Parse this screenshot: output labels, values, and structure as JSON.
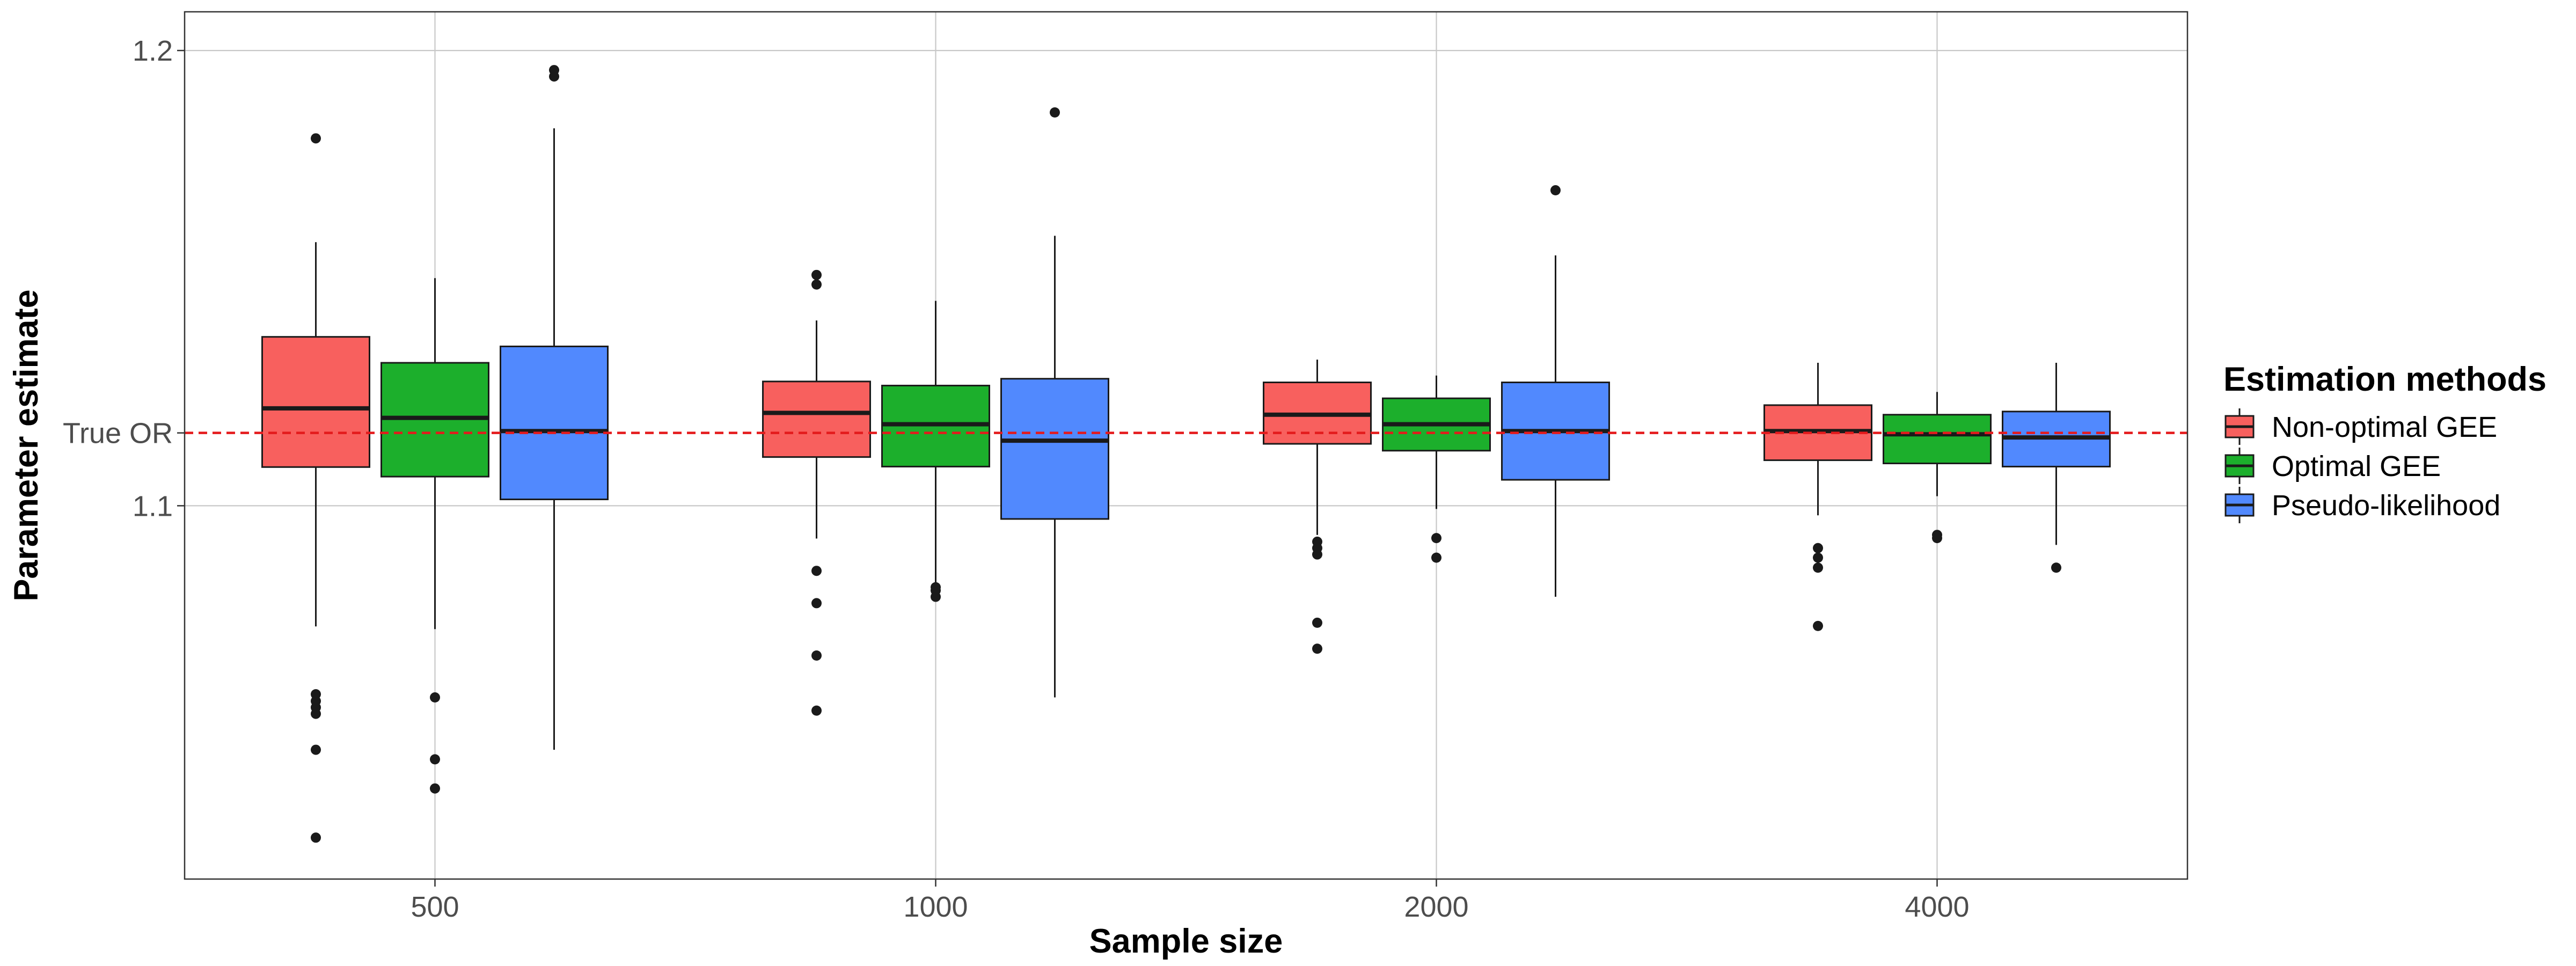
{
  "chart_data": {
    "type": "box",
    "xlabel": "Sample size",
    "ylabel": "Parameter estimate",
    "categories": [
      "500",
      "1000",
      "2000",
      "4000"
    ],
    "y_ticks": [
      1.1,
      1.2
    ],
    "y_tick_labels": [
      "1.1",
      "1.2"
    ],
    "ylim": [
      1.018,
      1.2085
    ],
    "reference_line": {
      "value": 1.116,
      "label": "True OR",
      "color": "#e41a1c",
      "style": "dashed"
    },
    "grid": true,
    "legend": {
      "title": "Estimation methods",
      "position": "right"
    },
    "series": [
      {
        "name": "Non-optimal GEE",
        "color": "#f8605e",
        "boxes": [
          {
            "category": "500",
            "whisker_low": 1.0735,
            "q1": 1.1085,
            "median": 1.1214,
            "q3": 1.1371,
            "whisker_high": 1.1579,
            "outliers": [
              1.1807,
              1.0586,
              1.0571,
              1.0557,
              1.0543,
              1.0464,
              1.0271
            ]
          },
          {
            "category": "1000",
            "whisker_low": 1.0928,
            "q1": 1.1107,
            "median": 1.1204,
            "q3": 1.1273,
            "whisker_high": 1.1407,
            "outliers": [
              1.1507,
              1.1486,
              1.0857,
              1.0786,
              1.0671,
              1.055
            ]
          },
          {
            "category": "2000",
            "whisker_low": 1.0936,
            "q1": 1.1136,
            "median": 1.12,
            "q3": 1.1271,
            "whisker_high": 1.1321,
            "outliers": [
              1.0921,
              1.0907,
              1.0893,
              1.0743,
              1.0686
            ]
          },
          {
            "category": "4000",
            "whisker_low": 1.0979,
            "q1": 1.11,
            "median": 1.1164,
            "q3": 1.1221,
            "whisker_high": 1.1314,
            "outliers": [
              1.0907,
              1.0886,
              1.0864,
              1.0736
            ]
          }
        ]
      },
      {
        "name": "Optimal GEE",
        "color": "#1caf2c",
        "boxes": [
          {
            "category": "500",
            "whisker_low": 1.0729,
            "q1": 1.1064,
            "median": 1.1193,
            "q3": 1.1314,
            "whisker_high": 1.15,
            "outliers": [
              1.0579,
              1.0443,
              1.0379
            ]
          },
          {
            "category": "1000",
            "whisker_low": 1.0807,
            "q1": 1.1086,
            "median": 1.1179,
            "q3": 1.1264,
            "whisker_high": 1.145,
            "outliers": [
              1.0821,
              1.0814,
              1.08
            ]
          },
          {
            "category": "2000",
            "whisker_low": 1.0993,
            "q1": 1.1121,
            "median": 1.1179,
            "q3": 1.1236,
            "whisker_high": 1.1286,
            "outliers": [
              1.0929,
              1.0886
            ]
          },
          {
            "category": "4000",
            "whisker_low": 1.1021,
            "q1": 1.1093,
            "median": 1.1157,
            "q3": 1.12,
            "whisker_high": 1.125,
            "outliers": [
              1.0936,
              1.0929
            ]
          }
        ]
      },
      {
        "name": "Pseudo-likelihood",
        "color": "#5189fe",
        "boxes": [
          {
            "category": "500",
            "whisker_low": 1.0464,
            "q1": 1.1014,
            "median": 1.1164,
            "q3": 1.135,
            "whisker_high": 1.1829,
            "outliers": [
              1.1957,
              1.1943
            ]
          },
          {
            "category": "1000",
            "whisker_low": 1.0579,
            "q1": 1.0971,
            "median": 1.1143,
            "q3": 1.1279,
            "whisker_high": 1.1593,
            "outliers": [
              1.1864
            ]
          },
          {
            "category": "2000",
            "whisker_low": 1.08,
            "q1": 1.1057,
            "median": 1.1164,
            "q3": 1.1271,
            "whisker_high": 1.155,
            "outliers": [
              1.1693
            ]
          },
          {
            "category": "4000",
            "whisker_low": 1.0914,
            "q1": 1.1086,
            "median": 1.115,
            "q3": 1.1207,
            "whisker_high": 1.1314,
            "outliers": [
              1.0864
            ]
          }
        ]
      }
    ]
  }
}
